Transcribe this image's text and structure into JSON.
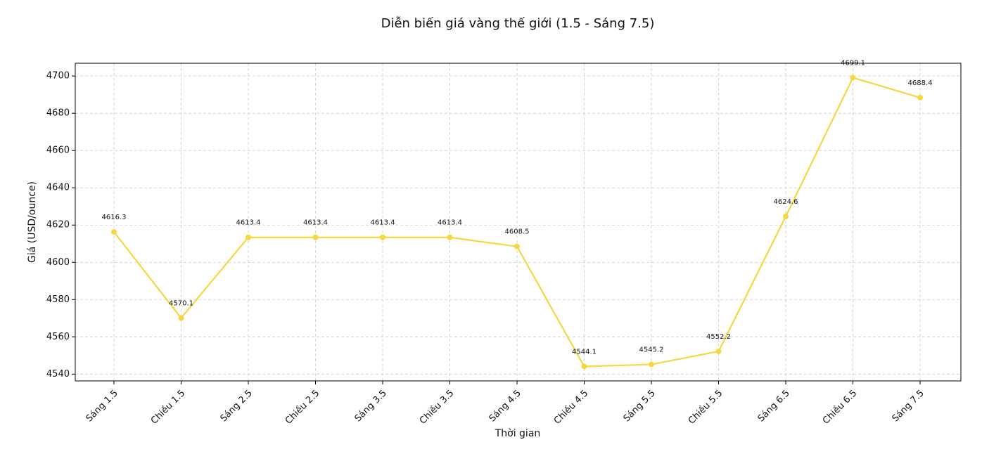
{
  "chart_data": {
    "type": "line",
    "title": "Diễn biến giá vàng thế giới (1.5 - Sáng 7.5)",
    "x_label": "Thời gian",
    "y_label": "Giá (USD/ounce)",
    "categories": [
      "Sáng 1.5",
      "Chiều 1.5",
      "Sáng 2.5",
      "Chiều 2.5",
      "Sáng 3.5",
      "Chiều 3.5",
      "Sáng 4.5",
      "Chiều 4.5",
      "Sáng 5.5",
      "Chiều 5.5",
      "Sáng 6.5",
      "Chiều 6.5",
      "Sáng 7.5"
    ],
    "values": [
      4616.3,
      4570.1,
      4613.4,
      4613.4,
      4613.4,
      4613.4,
      4608.5,
      4544.1,
      4545.2,
      4552.2,
      4624.6,
      4699.1,
      4688.4
    ],
    "color": "#f5d742",
    "ylim": [
      4536.35,
      4706.85
    ],
    "yticks": [
      4540,
      4560,
      4580,
      4600,
      4620,
      4640,
      4660,
      4680,
      4700
    ],
    "grid": true
  }
}
